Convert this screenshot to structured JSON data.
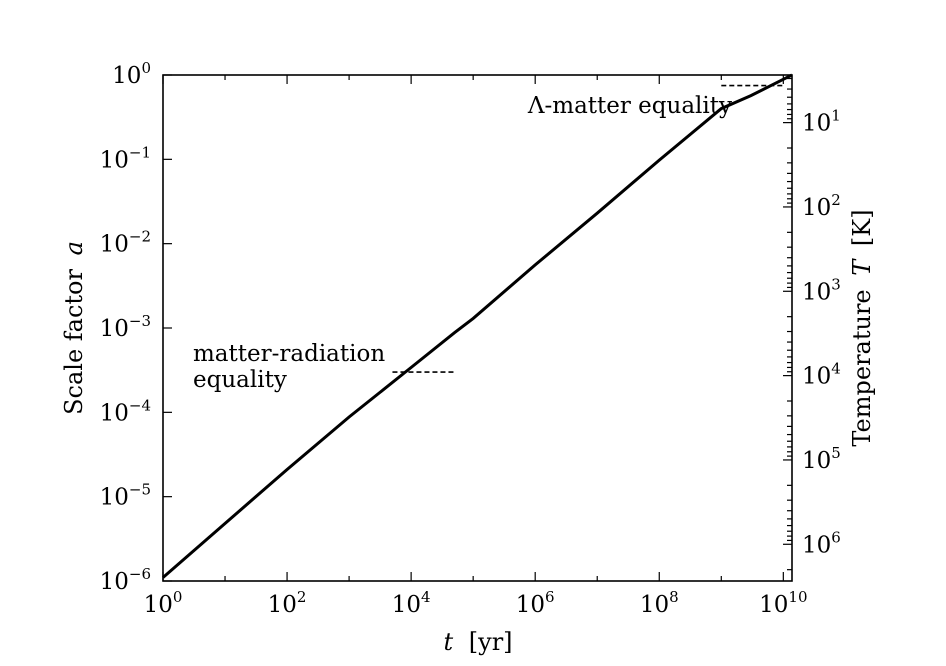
{
  "chart_data": {
    "type": "line",
    "x_scale": "log",
    "y_scale": "log",
    "grid": false,
    "xlabel": {
      "var": "t",
      "unit": "[yr]"
    },
    "ylabel": {
      "text": "Scale factor",
      "var": "a"
    },
    "y2label": {
      "text": "Temperature",
      "var": "T",
      "unit": "[K]"
    },
    "xlim": [
      1,
      13800000000
    ],
    "ylim": [
      1e-06,
      1
    ],
    "x_ticks": [
      {
        "base": "10",
        "exp": "0",
        "value": 1
      },
      {
        "base": "10",
        "exp": "2",
        "value": 100
      },
      {
        "base": "10",
        "exp": "4",
        "value": 10000
      },
      {
        "base": "10",
        "exp": "6",
        "value": 1000000
      },
      {
        "base": "10",
        "exp": "8",
        "value": 100000000
      },
      {
        "base": "10",
        "exp": "10",
        "value": 10000000000
      }
    ],
    "y_ticks": [
      {
        "base": "10",
        "exp": "0",
        "value": 1
      },
      {
        "base": "10",
        "exp": "−1",
        "value": 0.1
      },
      {
        "base": "10",
        "exp": "−2",
        "value": 0.01
      },
      {
        "base": "10",
        "exp": "−3",
        "value": 0.001
      },
      {
        "base": "10",
        "exp": "−4",
        "value": 0.0001
      },
      {
        "base": "10",
        "exp": "−5",
        "value": 1e-05
      },
      {
        "base": "10",
        "exp": "−6",
        "value": 1e-06
      }
    ],
    "y2_ticks": [
      {
        "base": "10",
        "exp": "1",
        "value": 10
      },
      {
        "base": "10",
        "exp": "2",
        "value": 100
      },
      {
        "base": "10",
        "exp": "3",
        "value": 1000
      },
      {
        "base": "10",
        "exp": "4",
        "value": 10000
      },
      {
        "base": "10",
        "exp": "5",
        "value": 100000
      },
      {
        "base": "10",
        "exp": "6",
        "value": 1000000
      }
    ],
    "series": [
      {
        "x": [
          1,
          10,
          100,
          1000,
          10000,
          50000,
          100000,
          1000000,
          10000000,
          100000000,
          1000000000,
          3000000000,
          10000000000,
          13800000000
        ],
        "y": [
          1.1e-06,
          4.8e-06,
          2.1e-05,
          8.8e-05,
          0.00034,
          0.00088,
          0.0013,
          0.0056,
          0.023,
          0.098,
          0.4,
          0.57,
          0.89,
          1.0
        ]
      }
    ],
    "annotations": [
      {
        "text": [
          "matter-radiation",
          "equality"
        ],
        "x_range": [
          5000,
          50000
        ],
        "y": 0.0003
      },
      {
        "text": "Λ-matter equality",
        "x_range": [
          1000000000,
          10000000000
        ],
        "y": 0.75
      }
    ]
  }
}
